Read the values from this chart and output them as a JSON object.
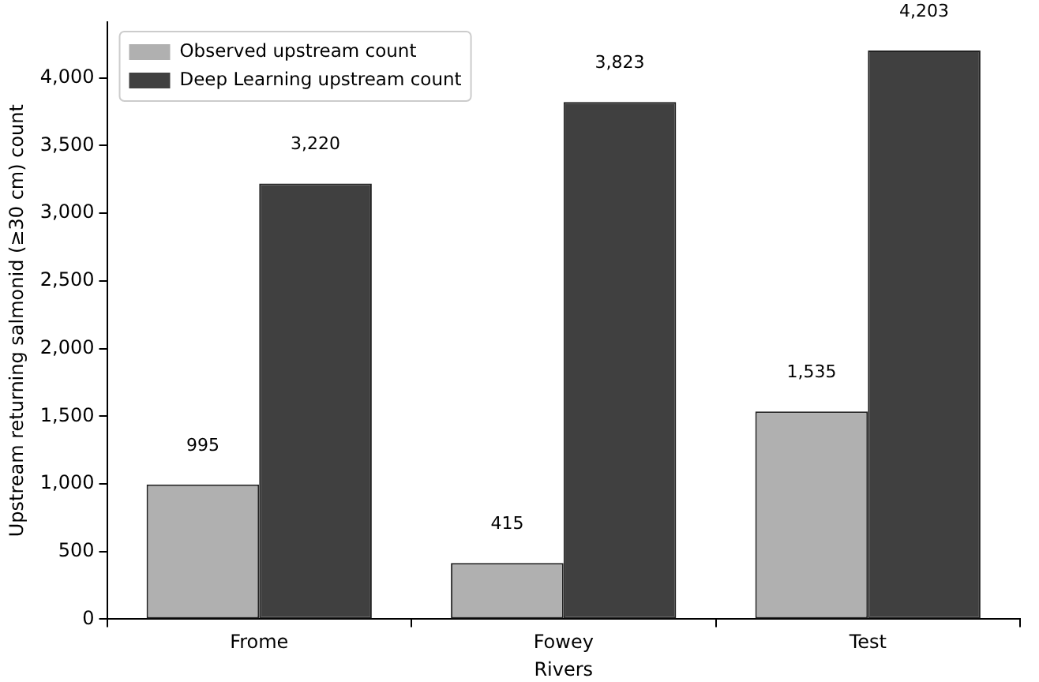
{
  "chart_data": {
    "type": "bar",
    "xlabel": "Rivers",
    "ylabel": "Upstream returning salmonid (≥30 cm) count",
    "categories": [
      "Frome",
      "Fowey",
      "Test"
    ],
    "series": [
      {
        "name": "Observed upstream count",
        "color": "#b0b0b0",
        "values": [
          995,
          415,
          1535
        ]
      },
      {
        "name": "Deep Learning upstream count",
        "color": "#404040",
        "values": [
          3220,
          3823,
          4203
        ]
      }
    ],
    "ylim": [
      0,
      4413
    ],
    "yticks": [
      {
        "value": 0,
        "label": "0"
      },
      {
        "value": 500,
        "label": "500"
      },
      {
        "value": 1000,
        "label": "1,000"
      },
      {
        "value": 1500,
        "label": "1,500"
      },
      {
        "value": 2000,
        "label": "2,000"
      },
      {
        "value": 2500,
        "label": "2,500"
      },
      {
        "value": 3000,
        "label": "3,000"
      },
      {
        "value": 3500,
        "label": "3,500"
      },
      {
        "value": 4000,
        "label": "4,000"
      }
    ],
    "value_labels": [
      [
        "995",
        "415",
        "1,535"
      ],
      [
        "3,220",
        "3,823",
        "4,203"
      ]
    ],
    "legend": "top left",
    "grid": false
  }
}
